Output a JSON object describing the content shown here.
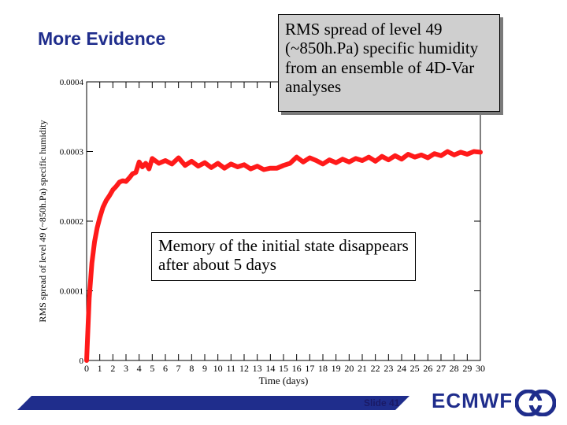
{
  "slide": {
    "title": "More Evidence",
    "callout_top": "RMS spread of level 49 (~850h.Pa) specific humidity from an ensemble of 4D-Var analyses",
    "callout_mid": "Memory of the initial state disappears after about 5 days",
    "slide_number": "Slide 41",
    "brand": "ECMWF",
    "colors": {
      "title": "#1f2d8c",
      "series": "#ff1a1a",
      "footer_band": "#1f2d8c"
    }
  },
  "chart_data": {
    "type": "line",
    "title": "",
    "xlabel": "Time (days)",
    "ylabel": "RMS spread of level 49 (~850h.Pa) specific humidity",
    "xlim": [
      0,
      30
    ],
    "ylim": [
      0,
      0.0004
    ],
    "x_ticks": [
      0,
      1,
      2,
      3,
      4,
      5,
      6,
      7,
      8,
      9,
      10,
      11,
      12,
      13,
      14,
      15,
      16,
      17,
      18,
      19,
      20,
      21,
      22,
      23,
      24,
      25,
      26,
      27,
      28,
      29,
      30
    ],
    "y_ticks": [
      0,
      0.0001,
      0.0002,
      0.0003,
      0.0004
    ],
    "y_tick_labels": [
      "0",
      "0.0001",
      "0.0002",
      "0.0003",
      "0.0004"
    ],
    "grid": false,
    "series": [
      {
        "x": [
          0,
          0.2,
          0.4,
          0.6,
          0.8,
          1,
          1.25,
          1.5,
          1.75,
          2,
          2.25,
          2.5,
          2.75,
          3,
          3.25,
          3.5,
          3.75,
          4,
          4.25,
          4.5,
          4.75,
          5,
          5.5,
          6,
          6.5,
          7,
          7.5,
          8,
          8.5,
          9,
          9.5,
          10,
          10.5,
          11,
          11.5,
          12,
          12.5,
          13,
          13.5,
          14,
          14.5,
          15,
          15.5,
          16,
          16.5,
          17,
          17.5,
          18,
          18.5,
          19,
          19.5,
          20,
          20.5,
          21,
          21.5,
          22,
          22.5,
          23,
          23.5,
          24,
          24.5,
          25,
          25.5,
          26,
          26.5,
          27,
          27.5,
          28,
          28.5,
          29,
          29.5,
          30
        ],
        "y": [
          0,
          9e-05,
          0.00014,
          0.00017,
          0.00019,
          0.000205,
          0.00022,
          0.00023,
          0.000237,
          0.000245,
          0.00025,
          0.000256,
          0.000258,
          0.000257,
          0.000262,
          0.000268,
          0.00027,
          0.000285,
          0.000278,
          0.000283,
          0.000275,
          0.00029,
          0.000283,
          0.000287,
          0.000282,
          0.000291,
          0.00028,
          0.000286,
          0.000279,
          0.000284,
          0.000277,
          0.000283,
          0.000276,
          0.000282,
          0.000278,
          0.000281,
          0.000275,
          0.000279,
          0.000274,
          0.000276,
          0.000276,
          0.00028,
          0.000283,
          0.000292,
          0.000285,
          0.000291,
          0.000287,
          0.000282,
          0.000288,
          0.000284,
          0.000289,
          0.000285,
          0.00029,
          0.000287,
          0.000292,
          0.000286,
          0.000293,
          0.000288,
          0.000294,
          0.000289,
          0.000296,
          0.000292,
          0.000295,
          0.000291,
          0.000297,
          0.000294,
          0.0003,
          0.000295,
          0.000299,
          0.000296,
          0.0003,
          0.000299
        ]
      }
    ]
  }
}
